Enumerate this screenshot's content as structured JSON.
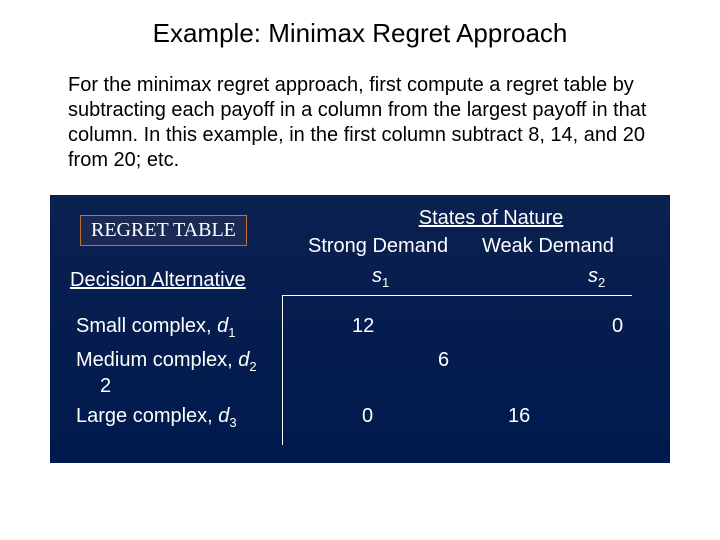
{
  "title": "Example:  Minimax Regret Approach",
  "body": "For the minimax regret approach, first compute a regret table by subtracting each payoff in a column from the largest payoff in that column.  In this example, in the first column subtract 8, 14, and 20 from 20;  etc.",
  "panel": {
    "background_top": "#0a2050",
    "background_bottom": "#001a4d",
    "text_color": "#ffffff",
    "line_color": "#ffffff",
    "regret_label": "REGRET TABLE",
    "regret_border": "#c07030",
    "regret_bg": "#1a2a55",
    "states_title": "States of Nature",
    "strong_demand": "Strong Demand",
    "weak_demand": "Weak Demand",
    "decision_alt": "Decision Alternative",
    "s1_var": "s",
    "s1_sub": "1",
    "s2_var": "s",
    "s2_sub": "2",
    "rows": {
      "small": {
        "label_prefix": "Small complex, ",
        "d": "d",
        "sub": "1"
      },
      "medium": {
        "label_prefix": "Medium complex, ",
        "d": "d",
        "sub": "2",
        "extra_2": "2"
      },
      "large": {
        "label_prefix": "Large complex, ",
        "d": "d",
        "sub": "3"
      }
    },
    "values": {
      "small_s1": "12",
      "small_s2": "0",
      "med_center": "6",
      "large_s1": "0",
      "large_s2": "16"
    }
  },
  "fontsize": {
    "title": 26,
    "body": 20,
    "panel": 20
  }
}
